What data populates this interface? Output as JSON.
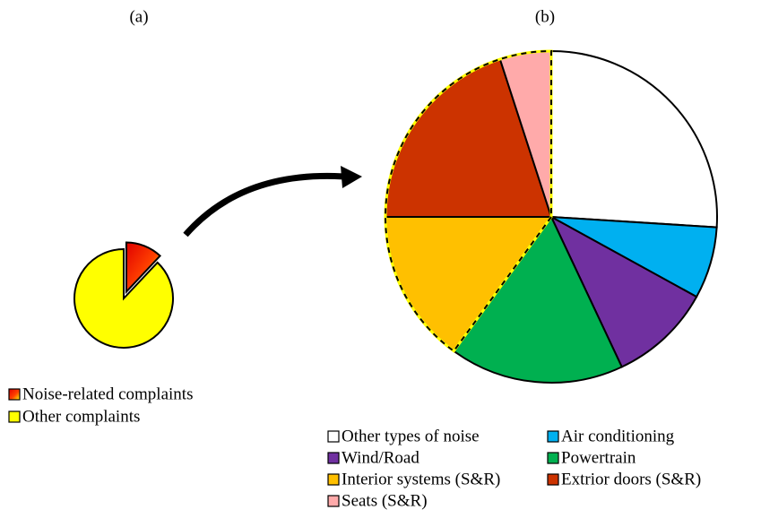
{
  "chart_data": [
    {
      "type": "pie",
      "title": "(a)",
      "categories": [
        "Noise-related complaints",
        "Other complaints"
      ],
      "values": [
        12,
        88
      ],
      "colors": [
        "#ff0000",
        "#ffff00"
      ]
    },
    {
      "type": "pie",
      "title": "(b)",
      "categories": [
        "Other types of noise",
        "Air conditioning",
        "Wind/Road",
        "Powertrain",
        "Interior systems (S&R)",
        "Extrior doors (S&R)",
        "Seats (S&R)"
      ],
      "values": [
        26,
        7,
        10,
        17,
        15,
        20,
        5
      ],
      "colors": [
        "#ffffff",
        "#00b0f0",
        "#7030a0",
        "#00b050",
        "#ffc000",
        "#cc3300",
        "#ffaaaa"
      ]
    }
  ]
}
